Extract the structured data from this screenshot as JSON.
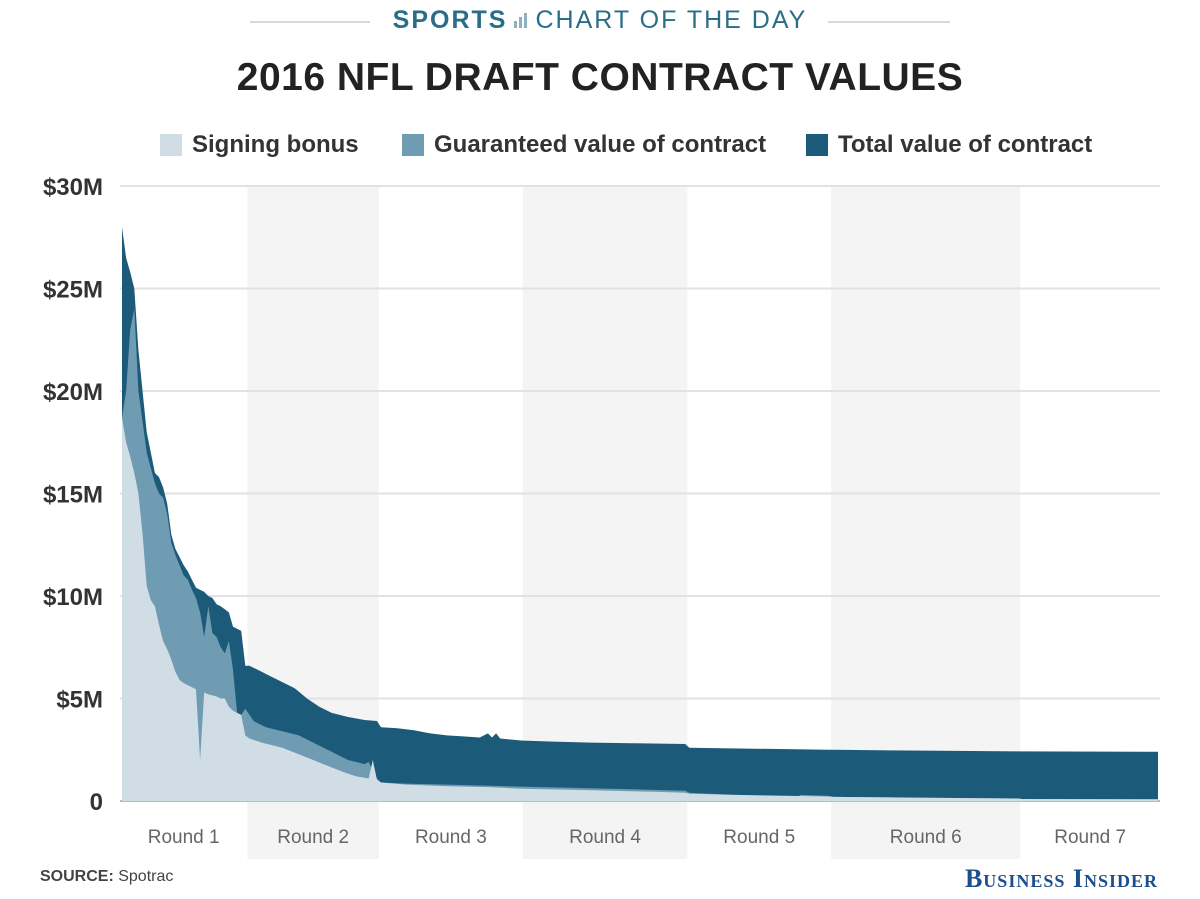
{
  "header": {
    "brand_bold": "SPORTS",
    "brand_rest": "CHART OF THE DAY",
    "icon": "bar-chart-icon"
  },
  "title": "2016 NFL DRAFT CONTRACT VALUES",
  "legend": [
    {
      "label": "Signing bonus",
      "color": "#d0dde4"
    },
    {
      "label": "Guaranteed value of contract",
      "color": "#6f9cb2"
    },
    {
      "label": "Total value of contract",
      "color": "#1c5a7a"
    }
  ],
  "source_label": "SOURCE:",
  "source_text": "Spotrac",
  "publisher": "Business Insider",
  "chart_data": {
    "type": "area",
    "x_label_unit": "draft pick",
    "ylim": [
      0,
      30
    ],
    "y_unit": "$M",
    "yticks": [
      {
        "value": 0,
        "label": "0"
      },
      {
        "value": 5,
        "label": "$5M"
      },
      {
        "value": 10,
        "label": "$10M"
      },
      {
        "value": 15,
        "label": "$15M"
      },
      {
        "value": 20,
        "label": "$20M"
      },
      {
        "value": 25,
        "label": "$25M"
      },
      {
        "value": 30,
        "label": "$30M"
      }
    ],
    "grid": true,
    "legend_placement": "top",
    "rounds": [
      {
        "label": "Round 1",
        "start_pick": 1,
        "end_pick": 31,
        "shaded": false
      },
      {
        "label": "Round 2",
        "start_pick": 32,
        "end_pick": 63,
        "shaded": true
      },
      {
        "label": "Round 3",
        "start_pick": 64,
        "end_pick": 98,
        "shaded": false
      },
      {
        "label": "Round 4",
        "start_pick": 99,
        "end_pick": 138,
        "shaded": true
      },
      {
        "label": "Round 5",
        "start_pick": 139,
        "end_pick": 173,
        "shaded": false
      },
      {
        "label": "Round 6",
        "start_pick": 174,
        "end_pick": 219,
        "shaded": true
      },
      {
        "label": "Round 7",
        "start_pick": 220,
        "end_pick": 253,
        "shaded": false
      }
    ],
    "series": [
      {
        "name": "Total value of contract",
        "points": [
          [
            1,
            28
          ],
          [
            2,
            26.5
          ],
          [
            3,
            25.8
          ],
          [
            4,
            25
          ],
          [
            5,
            22
          ],
          [
            7,
            18
          ],
          [
            8,
            17
          ],
          [
            9,
            16
          ],
          [
            10,
            15.8
          ],
          [
            11,
            15.3
          ],
          [
            12,
            14.5
          ],
          [
            13,
            13
          ],
          [
            14,
            12.3
          ],
          [
            16,
            11.5
          ],
          [
            17,
            11.2
          ],
          [
            18,
            10.8
          ],
          [
            19,
            10.4
          ],
          [
            21,
            10.2
          ],
          [
            22,
            10
          ],
          [
            23,
            9.9
          ],
          [
            24,
            9.6
          ],
          [
            25,
            9.5
          ],
          [
            27,
            9.2
          ],
          [
            28,
            8.5
          ],
          [
            29,
            8.4
          ],
          [
            30,
            8.3
          ],
          [
            31,
            6.6
          ],
          [
            32,
            6.6
          ],
          [
            34,
            6.4
          ],
          [
            37,
            6.1
          ],
          [
            40,
            5.8
          ],
          [
            43,
            5.5
          ],
          [
            46,
            5
          ],
          [
            49,
            4.6
          ],
          [
            52,
            4.3
          ],
          [
            56,
            4.1
          ],
          [
            60,
            3.95
          ],
          [
            63,
            3.9
          ],
          [
            64,
            3.6
          ],
          [
            68,
            3.55
          ],
          [
            72,
            3.45
          ],
          [
            76,
            3.3
          ],
          [
            80,
            3.2
          ],
          [
            84,
            3.15
          ],
          [
            88,
            3.1
          ],
          [
            90,
            3.3
          ],
          [
            91,
            3.1
          ],
          [
            92,
            3.3
          ],
          [
            93,
            3.05
          ],
          [
            98,
            2.95
          ],
          [
            105,
            2.9
          ],
          [
            115,
            2.85
          ],
          [
            125,
            2.82
          ],
          [
            138,
            2.78
          ],
          [
            139,
            2.6
          ],
          [
            155,
            2.55
          ],
          [
            173,
            2.5
          ],
          [
            174,
            2.5
          ],
          [
            200,
            2.45
          ],
          [
            219,
            2.42
          ],
          [
            220,
            2.42
          ],
          [
            253,
            2.4
          ]
        ]
      },
      {
        "name": "Guaranteed value of contract",
        "points": [
          [
            1,
            18.7
          ],
          [
            2,
            20
          ],
          [
            3,
            23
          ],
          [
            4,
            24
          ],
          [
            5,
            20
          ],
          [
            7,
            17
          ],
          [
            9,
            15.5
          ],
          [
            10,
            15
          ],
          [
            11,
            14.8
          ],
          [
            12,
            14
          ],
          [
            13,
            12.6
          ],
          [
            14,
            12
          ],
          [
            16,
            11
          ],
          [
            17,
            10.8
          ],
          [
            18,
            10.3
          ],
          [
            19,
            9.9
          ],
          [
            20,
            9.2
          ],
          [
            21,
            8
          ],
          [
            22,
            9.5
          ],
          [
            23,
            8.2
          ],
          [
            24,
            8
          ],
          [
            25,
            7.5
          ],
          [
            26,
            7.2
          ],
          [
            27,
            7.8
          ],
          [
            28,
            6.4
          ],
          [
            29,
            4.3
          ],
          [
            30,
            4.2
          ],
          [
            31,
            4.5
          ],
          [
            33,
            3.9
          ],
          [
            36,
            3.6
          ],
          [
            40,
            3.4
          ],
          [
            44,
            3.2
          ],
          [
            48,
            2.8
          ],
          [
            52,
            2.4
          ],
          [
            56,
            2
          ],
          [
            60,
            1.8
          ],
          [
            61,
            1.9
          ],
          [
            62,
            1.5
          ],
          [
            63,
            1.1
          ],
          [
            64,
            0.9
          ],
          [
            70,
            0.85
          ],
          [
            80,
            0.8
          ],
          [
            98,
            0.7
          ],
          [
            110,
            0.65
          ],
          [
            120,
            0.6
          ],
          [
            138,
            0.5
          ],
          [
            139,
            0.4
          ],
          [
            150,
            0.3
          ],
          [
            160,
            0.25
          ],
          [
            165,
            0.1
          ],
          [
            166,
            0.3
          ],
          [
            173,
            0.25
          ],
          [
            174,
            0.2
          ],
          [
            200,
            0.15
          ],
          [
            219,
            0.12
          ],
          [
            220,
            0.1
          ],
          [
            253,
            0.1
          ]
        ]
      },
      {
        "name": "Signing bonus",
        "points": [
          [
            1,
            18.7
          ],
          [
            2,
            17.5
          ],
          [
            3,
            16.8
          ],
          [
            4,
            16
          ],
          [
            5,
            15
          ],
          [
            6,
            13
          ],
          [
            7,
            10.5
          ],
          [
            8,
            9.8
          ],
          [
            9,
            9.5
          ],
          [
            10,
            8.6
          ],
          [
            11,
            7.8
          ],
          [
            12,
            7.4
          ],
          [
            13,
            6.9
          ],
          [
            14,
            6.3
          ],
          [
            15,
            5.9
          ],
          [
            16,
            5.75
          ],
          [
            17,
            5.65
          ],
          [
            18,
            5.55
          ],
          [
            19,
            5.45
          ],
          [
            20,
            2
          ],
          [
            21,
            5.3
          ],
          [
            22,
            5.2
          ],
          [
            23,
            5.15
          ],
          [
            24,
            5.1
          ],
          [
            25,
            5
          ],
          [
            26,
            5
          ],
          [
            27,
            4.6
          ],
          [
            28,
            4.4
          ],
          [
            29,
            4.3
          ],
          [
            30,
            4.2
          ],
          [
            31,
            3.2
          ],
          [
            32,
            3.05
          ],
          [
            35,
            2.85
          ],
          [
            40,
            2.6
          ],
          [
            45,
            2.2
          ],
          [
            50,
            1.8
          ],
          [
            55,
            1.4
          ],
          [
            58,
            1.2
          ],
          [
            61,
            1.1
          ],
          [
            62,
            2
          ],
          [
            63,
            1.05
          ],
          [
            64,
            0.9
          ],
          [
            70,
            0.8
          ],
          [
            80,
            0.72
          ],
          [
            90,
            0.68
          ],
          [
            98,
            0.6
          ],
          [
            110,
            0.55
          ],
          [
            120,
            0.5
          ],
          [
            130,
            0.45
          ],
          [
            138,
            0.4
          ],
          [
            139,
            0.35
          ],
          [
            150,
            0.3
          ],
          [
            173,
            0.22
          ],
          [
            174,
            0.2
          ],
          [
            200,
            0.15
          ],
          [
            219,
            0.12
          ],
          [
            220,
            0.1
          ],
          [
            253,
            0.08
          ]
        ]
      }
    ]
  }
}
